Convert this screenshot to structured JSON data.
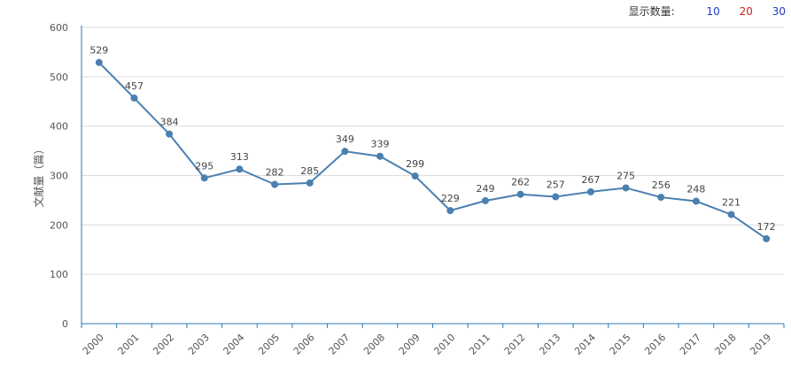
{
  "selector": {
    "label": "显示数量:",
    "options": [
      {
        "text": "10",
        "color": "#1a3cc8"
      },
      {
        "text": "20",
        "color": "#d12020"
      },
      {
        "text": "30",
        "color": "#1a3cc8"
      }
    ]
  },
  "chart_data": {
    "type": "line",
    "title": "",
    "xlabel": "",
    "ylabel": "文献量（篇）",
    "categories": [
      "2000",
      "2001",
      "2002",
      "2003",
      "2004",
      "2005",
      "2006",
      "2007",
      "2008",
      "2009",
      "2010",
      "2011",
      "2012",
      "2013",
      "2014",
      "2015",
      "2016",
      "2017",
      "2018",
      "2019"
    ],
    "series": [
      {
        "name": "文献量",
        "values": [
          529,
          457,
          384,
          295,
          313,
          282,
          285,
          349,
          339,
          299,
          229,
          249,
          262,
          257,
          267,
          275,
          256,
          248,
          221,
          172
        ]
      }
    ],
    "ylim": [
      0,
      600
    ],
    "yticks": [
      0,
      100,
      200,
      300,
      400,
      500,
      600
    ],
    "grid": true,
    "line_color": "#4a7fb0",
    "axis_color": "#2a7ab8"
  }
}
